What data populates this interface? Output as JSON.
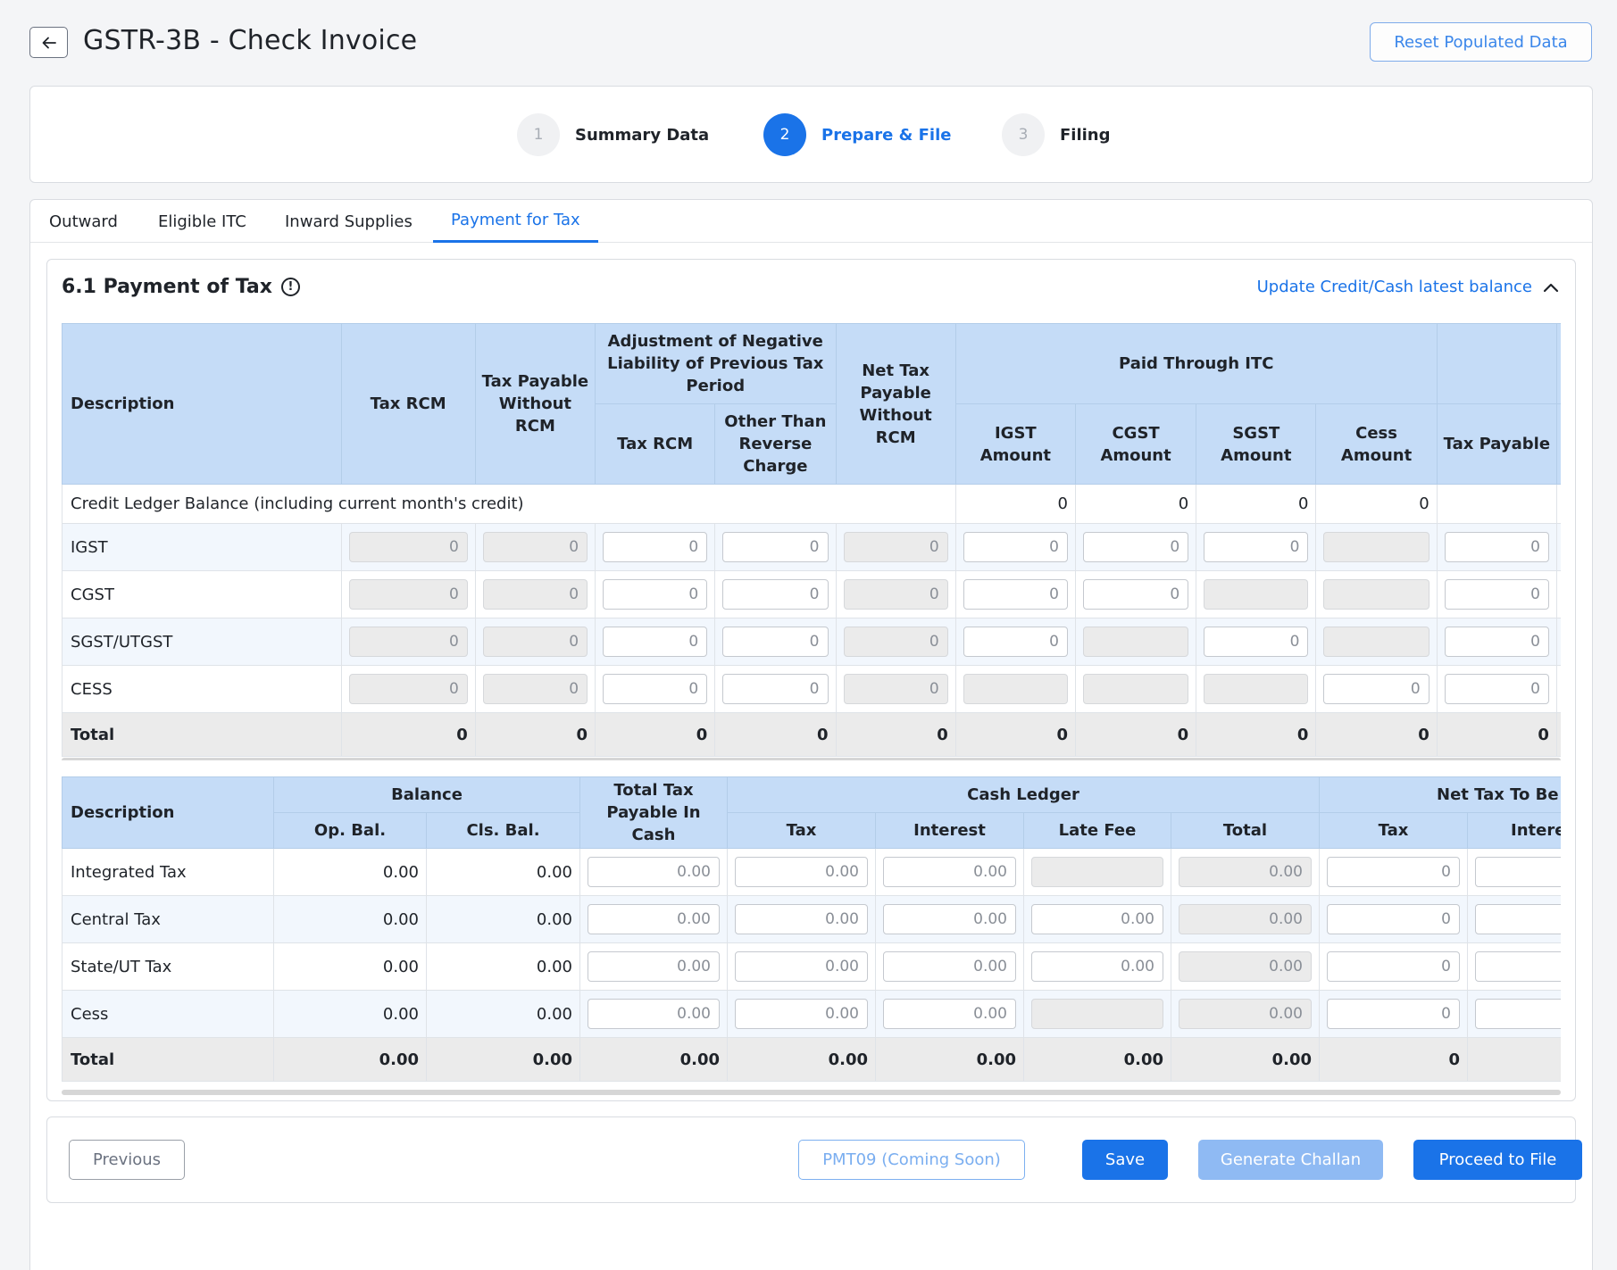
{
  "header": {
    "title": "GSTR-3B - Check Invoice",
    "reset_label": "Reset Populated Data"
  },
  "steps": [
    {
      "num": "1",
      "label": "Summary Data",
      "active": false
    },
    {
      "num": "2",
      "label": "Prepare & File",
      "active": true
    },
    {
      "num": "3",
      "label": "Filing",
      "active": false
    }
  ],
  "tabs": [
    "Outward",
    "Eligible ITC",
    "Inward Supplies",
    "Payment for Tax"
  ],
  "section": {
    "title": "6.1 Payment of Tax",
    "info": "!",
    "update_link": "Update Credit/Cash latest balance"
  },
  "table1": {
    "headers": {
      "description": "Description",
      "tax_rcm": "Tax RCM",
      "tax_payable_without_rcm": "Tax Payable Without RCM",
      "adjustment": "Adjustment of Negative Liability of Previous Tax Period",
      "adj_tax_rcm": "Tax RCM",
      "adj_other": "Other Than Reverse Charge",
      "net_tax": "Net Tax Payable Without RCM",
      "paid_itc": "Paid Through ITC",
      "igst": "IGST Amount",
      "cgst": "CGST Amount",
      "sgst": "SGST Amount",
      "cess": "Cess Amount",
      "tax_payable": "Tax Payable"
    },
    "credit_row": {
      "label": "Credit Ledger Balance (including current month's credit)",
      "igst": "0",
      "cgst": "0",
      "sgst": "0",
      "cess": "0"
    },
    "rows": [
      {
        "label": "IGST",
        "c": [
          "0",
          "0",
          "0",
          "0",
          "0",
          "0",
          "0",
          "0",
          "",
          "0"
        ]
      },
      {
        "label": "CGST",
        "c": [
          "0",
          "0",
          "0",
          "0",
          "0",
          "0",
          "0",
          "",
          "",
          "0"
        ]
      },
      {
        "label": "SGST/UTGST",
        "c": [
          "0",
          "0",
          "0",
          "0",
          "0",
          "0",
          "",
          "0",
          "",
          "0"
        ]
      },
      {
        "label": "CESS",
        "c": [
          "0",
          "0",
          "0",
          "0",
          "0",
          "",
          "",
          "",
          "0",
          "0"
        ]
      }
    ],
    "total": {
      "label": "Total",
      "c": [
        "0",
        "0",
        "0",
        "0",
        "0",
        "0",
        "0",
        "0",
        "0",
        "0"
      ]
    }
  },
  "table2": {
    "headers": {
      "description": "Description",
      "balance": "Balance",
      "op_bal": "Op. Bal.",
      "cls_bal": "Cls. Bal.",
      "total_tax_cash": "Total Tax Payable In Cash",
      "cash_ledger": "Cash Ledger",
      "tax": "Tax",
      "interest": "Interest",
      "late_fee": "Late Fee",
      "total": "Total",
      "net_tax": "Net Tax To Be I",
      "net_tax_tax": "Tax",
      "net_tax_interest": "Intere"
    },
    "rows": [
      {
        "label": "Integrated Tax",
        "op": "0.00",
        "cls": "0.00",
        "c": [
          "0.00",
          "0.00",
          "0.00",
          "",
          "0.00",
          "0",
          ""
        ]
      },
      {
        "label": "Central Tax",
        "op": "0.00",
        "cls": "0.00",
        "c": [
          "0.00",
          "0.00",
          "0.00",
          "0.00",
          "0.00",
          "0",
          ""
        ]
      },
      {
        "label": "State/UT Tax",
        "op": "0.00",
        "cls": "0.00",
        "c": [
          "0.00",
          "0.00",
          "0.00",
          "0.00",
          "0.00",
          "0",
          ""
        ]
      },
      {
        "label": "Cess",
        "op": "0.00",
        "cls": "0.00",
        "c": [
          "0.00",
          "0.00",
          "0.00",
          "",
          "0.00",
          "0",
          ""
        ]
      }
    ],
    "total": {
      "label": "Total",
      "c": [
        "0.00",
        "0.00",
        "0.00",
        "0.00",
        "0.00",
        "0.00",
        "0.00",
        "0",
        ""
      ]
    }
  },
  "footer": {
    "previous": "Previous",
    "pmt09": "PMT09 (Coming Soon)",
    "save": "Save",
    "generate_challan": "Generate Challan",
    "proceed": "Proceed to File"
  },
  "colors": {
    "accent": "#1a73e8",
    "header_bg": "#c5dcf7"
  }
}
